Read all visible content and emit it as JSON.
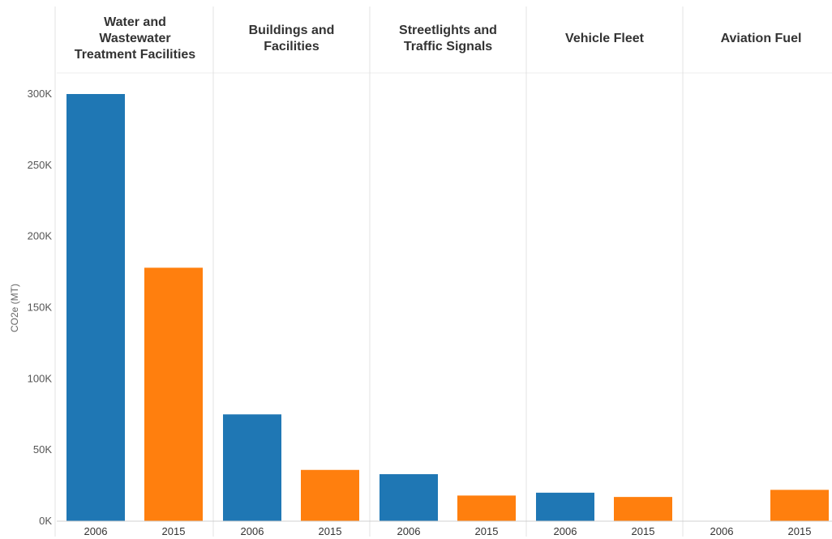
{
  "chart_data": {
    "type": "bar",
    "ylabel": "CO2e (MT)",
    "ylim": [
      0,
      310000
    ],
    "y_ticks": [
      0,
      50000,
      100000,
      150000,
      200000,
      250000,
      300000
    ],
    "y_tick_labels": [
      "0K",
      "50K",
      "100K",
      "150K",
      "200K",
      "250K",
      "300K"
    ],
    "x_categories": [
      "2006",
      "2015"
    ],
    "colors": {
      "2006": "#1f77b4",
      "2015": "#ff7f0e"
    },
    "grid": false,
    "panels": [
      {
        "title": [
          "Water and",
          "Wastewater",
          "Treatment Facilities"
        ],
        "values": [
          300000,
          178000
        ]
      },
      {
        "title": [
          "Buildings and",
          "Facilities"
        ],
        "values": [
          75000,
          36000
        ]
      },
      {
        "title": [
          "Streetlights and",
          "Traffic Signals"
        ],
        "values": [
          33000,
          18000
        ]
      },
      {
        "title": [
          "Vehicle Fleet"
        ],
        "values": [
          20000,
          17000
        ]
      },
      {
        "title": [
          "Aviation Fuel"
        ],
        "values": [
          0,
          22000
        ]
      }
    ]
  }
}
